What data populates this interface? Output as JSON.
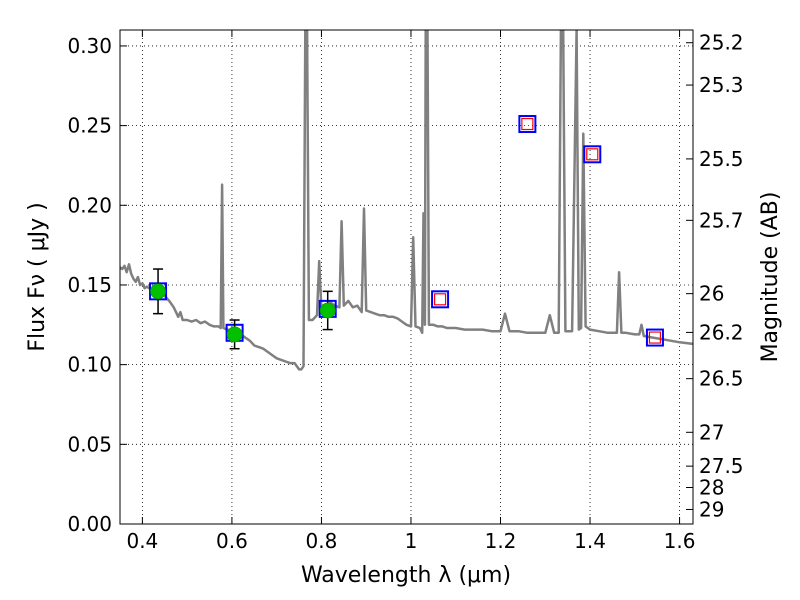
{
  "chart_data": {
    "type": "scatter",
    "xlabel": "Wavelength  λ (μm)",
    "ylabel": "Flux  Fν  ( μJy )",
    "y2label": "Magnitude (AB)",
    "xlim": [
      0.35,
      1.63
    ],
    "ylim": [
      0.0,
      0.31
    ],
    "grid": true,
    "xticks": [
      {
        "value": 0.4,
        "label": "0.4"
      },
      {
        "value": 0.6,
        "label": "0.6"
      },
      {
        "value": 0.8,
        "label": "0.8"
      },
      {
        "value": 1.0,
        "label": "1"
      },
      {
        "value": 1.2,
        "label": "1.2"
      },
      {
        "value": 1.4,
        "label": "1.4"
      },
      {
        "value": 1.6,
        "label": "1.6"
      }
    ],
    "yticks": [
      {
        "value": 0.0,
        "label": "0.00"
      },
      {
        "value": 0.05,
        "label": "0.05"
      },
      {
        "value": 0.1,
        "label": "0.10"
      },
      {
        "value": 0.15,
        "label": "0.15"
      },
      {
        "value": 0.2,
        "label": "0.20"
      },
      {
        "value": 0.25,
        "label": "0.25"
      },
      {
        "value": 0.3,
        "label": "0.30"
      }
    ],
    "y2ticks": [
      {
        "mag": 25.2,
        "label": "25.2"
      },
      {
        "mag": 25.3,
        "label": "25.3"
      },
      {
        "mag": 25.5,
        "label": "25.5"
      },
      {
        "mag": 25.7,
        "label": "25.7"
      },
      {
        "mag": 26,
        "label": "26"
      },
      {
        "mag": 26.2,
        "label": "26.2"
      },
      {
        "mag": 26.5,
        "label": "26.5"
      },
      {
        "mag": 27,
        "label": "27"
      },
      {
        "mag": 27.5,
        "label": "27.5"
      },
      {
        "mag": 28,
        "label": "28"
      },
      {
        "mag": 29,
        "label": "29"
      }
    ],
    "model_spectrum": {
      "color": "#808080",
      "points": [
        [
          0.35,
          0.161
        ],
        [
          0.355,
          0.16
        ],
        [
          0.36,
          0.162
        ],
        [
          0.365,
          0.158
        ],
        [
          0.37,
          0.163
        ],
        [
          0.375,
          0.157
        ],
        [
          0.38,
          0.154
        ],
        [
          0.385,
          0.152
        ],
        [
          0.39,
          0.155
        ],
        [
          0.395,
          0.15
        ],
        [
          0.4,
          0.151
        ],
        [
          0.405,
          0.148
        ],
        [
          0.41,
          0.149
        ],
        [
          0.42,
          0.147
        ],
        [
          0.43,
          0.146
        ],
        [
          0.44,
          0.146
        ],
        [
          0.45,
          0.143
        ],
        [
          0.46,
          0.14
        ],
        [
          0.465,
          0.138
        ],
        [
          0.47,
          0.136
        ],
        [
          0.475,
          0.133
        ],
        [
          0.48,
          0.13
        ],
        [
          0.485,
          0.133
        ],
        [
          0.49,
          0.128
        ],
        [
          0.5,
          0.128
        ],
        [
          0.51,
          0.127
        ],
        [
          0.52,
          0.128
        ],
        [
          0.53,
          0.126
        ],
        [
          0.54,
          0.127
        ],
        [
          0.55,
          0.125
        ],
        [
          0.56,
          0.124
        ],
        [
          0.57,
          0.124
        ],
        [
          0.575,
          0.123
        ],
        [
          0.578,
          0.213
        ],
        [
          0.581,
          0.123
        ],
        [
          0.59,
          0.122
        ],
        [
          0.6,
          0.121
        ],
        [
          0.61,
          0.12
        ],
        [
          0.62,
          0.119
        ],
        [
          0.63,
          0.117
        ],
        [
          0.64,
          0.115
        ],
        [
          0.65,
          0.112
        ],
        [
          0.66,
          0.111
        ],
        [
          0.67,
          0.11
        ],
        [
          0.68,
          0.108
        ],
        [
          0.69,
          0.106
        ],
        [
          0.7,
          0.104
        ],
        [
          0.71,
          0.103
        ],
        [
          0.72,
          0.102
        ],
        [
          0.73,
          0.101
        ],
        [
          0.74,
          0.101
        ],
        [
          0.75,
          0.097
        ],
        [
          0.755,
          0.097
        ],
        [
          0.76,
          0.099
        ],
        [
          0.764,
          0.31
        ],
        [
          0.768,
          0.31
        ],
        [
          0.772,
          0.128
        ],
        [
          0.78,
          0.128
        ],
        [
          0.79,
          0.131
        ],
        [
          0.795,
          0.165
        ],
        [
          0.8,
          0.135
        ],
        [
          0.81,
          0.134
        ],
        [
          0.82,
          0.139
        ],
        [
          0.83,
          0.137
        ],
        [
          0.84,
          0.136
        ],
        [
          0.845,
          0.19
        ],
        [
          0.85,
          0.137
        ],
        [
          0.86,
          0.14
        ],
        [
          0.87,
          0.136
        ],
        [
          0.88,
          0.137
        ],
        [
          0.89,
          0.133
        ],
        [
          0.895,
          0.198
        ],
        [
          0.9,
          0.134
        ],
        [
          0.91,
          0.133
        ],
        [
          0.92,
          0.132
        ],
        [
          0.93,
          0.131
        ],
        [
          0.94,
          0.131
        ],
        [
          0.95,
          0.13
        ],
        [
          0.96,
          0.13
        ],
        [
          0.97,
          0.129
        ],
        [
          0.98,
          0.127
        ],
        [
          0.99,
          0.125
        ],
        [
          1.0,
          0.124
        ],
        [
          1.005,
          0.18
        ],
        [
          1.01,
          0.124
        ],
        [
          1.02,
          0.123
        ],
        [
          1.025,
          0.12
        ],
        [
          1.028,
          0.195
        ],
        [
          1.031,
          0.125
        ],
        [
          1.033,
          0.31
        ],
        [
          1.037,
          0.31
        ],
        [
          1.04,
          0.125
        ],
        [
          1.05,
          0.125
        ],
        [
          1.06,
          0.124
        ],
        [
          1.07,
          0.124
        ],
        [
          1.08,
          0.123
        ],
        [
          1.1,
          0.123
        ],
        [
          1.12,
          0.122
        ],
        [
          1.14,
          0.122
        ],
        [
          1.16,
          0.122
        ],
        [
          1.18,
          0.121
        ],
        [
          1.2,
          0.121
        ],
        [
          1.21,
          0.132
        ],
        [
          1.22,
          0.121
        ],
        [
          1.24,
          0.121
        ],
        [
          1.26,
          0.12
        ],
        [
          1.28,
          0.12
        ],
        [
          1.3,
          0.12
        ],
        [
          1.31,
          0.131
        ],
        [
          1.32,
          0.12
        ],
        [
          1.33,
          0.12
        ],
        [
          1.335,
          0.31
        ],
        [
          1.34,
          0.31
        ],
        [
          1.345,
          0.121
        ],
        [
          1.36,
          0.121
        ],
        [
          1.37,
          0.31
        ],
        [
          1.375,
          0.122
        ],
        [
          1.38,
          0.123
        ],
        [
          1.385,
          0.245
        ],
        [
          1.39,
          0.124
        ],
        [
          1.4,
          0.122
        ],
        [
          1.42,
          0.121
        ],
        [
          1.44,
          0.12
        ],
        [
          1.46,
          0.12
        ],
        [
          1.465,
          0.158
        ],
        [
          1.47,
          0.12
        ],
        [
          1.48,
          0.12
        ],
        [
          1.5,
          0.119
        ],
        [
          1.51,
          0.119
        ],
        [
          1.515,
          0.125
        ],
        [
          1.52,
          0.118
        ],
        [
          1.54,
          0.117
        ],
        [
          1.56,
          0.116
        ],
        [
          1.58,
          0.115
        ],
        [
          1.6,
          0.114
        ],
        [
          1.63,
          0.113
        ]
      ]
    },
    "observed_photometry": {
      "marker_color": "#00c000",
      "points": [
        {
          "x": 0.435,
          "y": 0.146,
          "yerr": 0.014
        },
        {
          "x": 0.606,
          "y": 0.119,
          "yerr": 0.009
        },
        {
          "x": 0.814,
          "y": 0.134,
          "yerr": 0.012
        }
      ]
    },
    "model_photometry": {
      "edge_color": "#0000ff",
      "points": [
        {
          "x": 0.435,
          "y": 0.146
        },
        {
          "x": 0.606,
          "y": 0.12
        },
        {
          "x": 0.814,
          "y": 0.135
        },
        {
          "x": 1.065,
          "y": 0.141
        },
        {
          "x": 1.26,
          "y": 0.251
        },
        {
          "x": 1.405,
          "y": 0.232
        },
        {
          "x": 1.545,
          "y": 0.117
        }
      ]
    },
    "upper_limits": {
      "edge_color": "#ff0000",
      "points": [
        {
          "x": 1.065,
          "y": 0.141
        },
        {
          "x": 1.26,
          "y": 0.251
        },
        {
          "x": 1.405,
          "y": 0.232
        },
        {
          "x": 1.545,
          "y": 0.117
        }
      ]
    }
  }
}
